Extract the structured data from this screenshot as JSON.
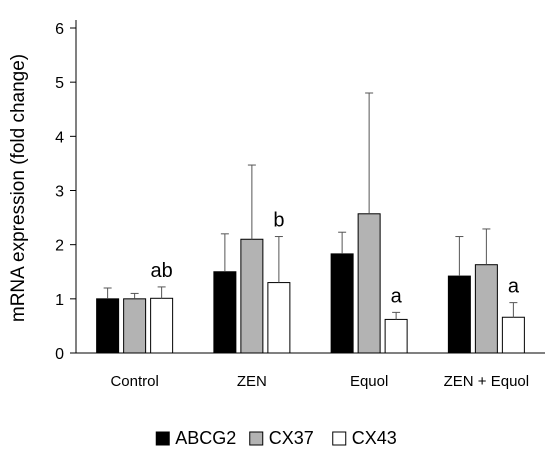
{
  "chart_data": {
    "type": "bar",
    "ylabel": "mRNA expression (fold change)",
    "ylim": [
      0,
      6
    ],
    "yticks": [
      "0",
      "1",
      "2",
      "3",
      "4",
      "5",
      "6"
    ],
    "categories": [
      "Control",
      "ZEN",
      "Equol",
      "ZEN + Equol"
    ],
    "series": [
      {
        "name": "ABCG2",
        "color": "#000000",
        "values": [
          1.0,
          1.5,
          1.83,
          1.42
        ],
        "errors": [
          0.2,
          0.7,
          0.4,
          0.73
        ]
      },
      {
        "name": "CX37",
        "color": "#b3b3b3",
        "values": [
          1.0,
          2.1,
          2.57,
          1.63
        ],
        "errors": [
          0.1,
          1.37,
          2.23,
          0.66
        ]
      },
      {
        "name": "CX43",
        "color": "#ffffff",
        "values": [
          1.01,
          1.3,
          0.62,
          0.66
        ],
        "errors": [
          0.21,
          0.85,
          0.13,
          0.27
        ]
      }
    ],
    "annotations": [
      {
        "category": "Control",
        "series": "CX43",
        "text": "ab"
      },
      {
        "category": "ZEN",
        "series": "CX43",
        "text": "b"
      },
      {
        "category": "Equol",
        "series": "CX43",
        "text": "a"
      },
      {
        "category": "ZEN + Equol",
        "series": "CX43",
        "text": "a"
      }
    ],
    "grid": false,
    "legend": "bottom"
  }
}
